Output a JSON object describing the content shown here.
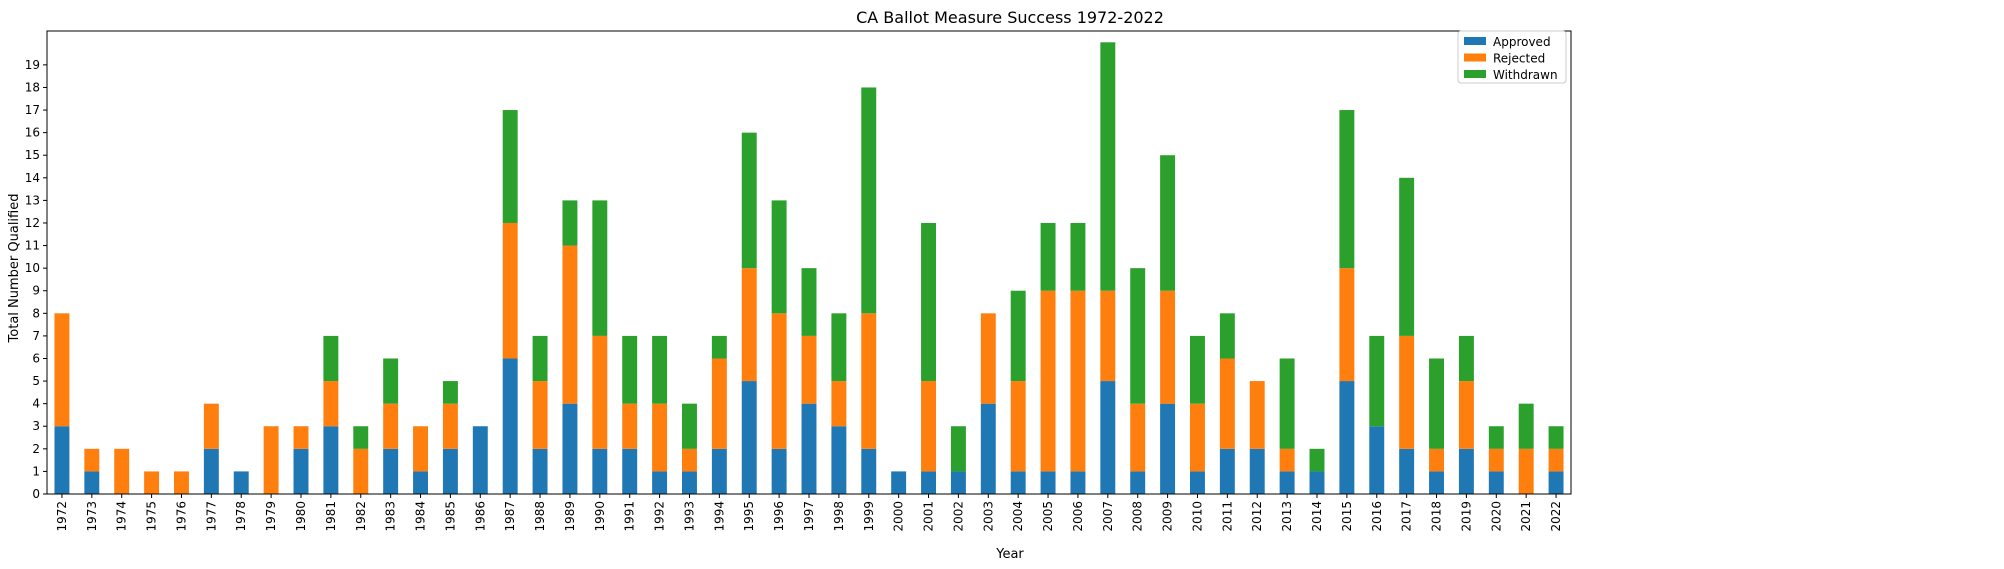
{
  "chart_data": {
    "type": "bar",
    "stacked": true,
    "title": "CA Ballot Measure Success 1972-2022",
    "xlabel": "Year",
    "ylabel": "Total Number Qualified",
    "ylim": [
      0,
      20.5
    ],
    "yticks": [
      0,
      1,
      2,
      3,
      4,
      5,
      6,
      7,
      8,
      9,
      10,
      11,
      12,
      13,
      14,
      15,
      16,
      17,
      18,
      19
    ],
    "legend_position": "top-right",
    "categories": [
      "1972",
      "1973",
      "1974",
      "1975",
      "1976",
      "1977",
      "1978",
      "1979",
      "1980",
      "1981",
      "1982",
      "1983",
      "1984",
      "1985",
      "1986",
      "1987",
      "1988",
      "1989",
      "1990",
      "1991",
      "1992",
      "1993",
      "1994",
      "1995",
      "1996",
      "1997",
      "1998",
      "1999",
      "2000",
      "2001",
      "2002",
      "2003",
      "2004",
      "2005",
      "2006",
      "2007",
      "2008",
      "2009",
      "2010",
      "2011",
      "2012",
      "2013",
      "2014",
      "2015",
      "2016",
      "2017",
      "2018",
      "2019",
      "2020",
      "2021",
      "2022"
    ],
    "series": [
      {
        "name": "Approved",
        "color": "#1f77b4",
        "values": [
          3,
          1,
          0,
          0,
          0,
          2,
          1,
          0,
          2,
          3,
          0,
          2,
          1,
          2,
          3,
          6,
          2,
          4,
          2,
          2,
          1,
          1,
          2,
          5,
          2,
          4,
          3,
          2,
          1,
          1,
          1,
          4,
          1,
          1,
          1,
          5,
          1,
          4,
          1,
          2,
          2,
          1,
          1,
          5,
          3,
          2,
          1,
          2,
          1,
          0,
          1
        ]
      },
      {
        "name": "Rejected",
        "color": "#ff7f0e",
        "values": [
          5,
          1,
          2,
          1,
          1,
          2,
          0,
          3,
          1,
          2,
          2,
          2,
          2,
          2,
          0,
          6,
          3,
          7,
          5,
          2,
          3,
          1,
          4,
          5,
          6,
          3,
          2,
          6,
          0,
          4,
          0,
          4,
          4,
          8,
          8,
          4,
          3,
          5,
          3,
          4,
          3,
          1,
          0,
          5,
          0,
          5,
          1,
          3,
          1,
          2,
          1
        ]
      },
      {
        "name": "Withdrawn",
        "color": "#2ca02c",
        "values": [
          0,
          0,
          0,
          0,
          0,
          0,
          0,
          0,
          0,
          2,
          1,
          2,
          0,
          1,
          0,
          5,
          2,
          2,
          6,
          3,
          3,
          2,
          1,
          6,
          5,
          3,
          3,
          10,
          0,
          7,
          2,
          0,
          4,
          3,
          3,
          11,
          6,
          6,
          3,
          2,
          0,
          4,
          1,
          7,
          4,
          7,
          4,
          2,
          1,
          2,
          1
        ]
      }
    ]
  }
}
